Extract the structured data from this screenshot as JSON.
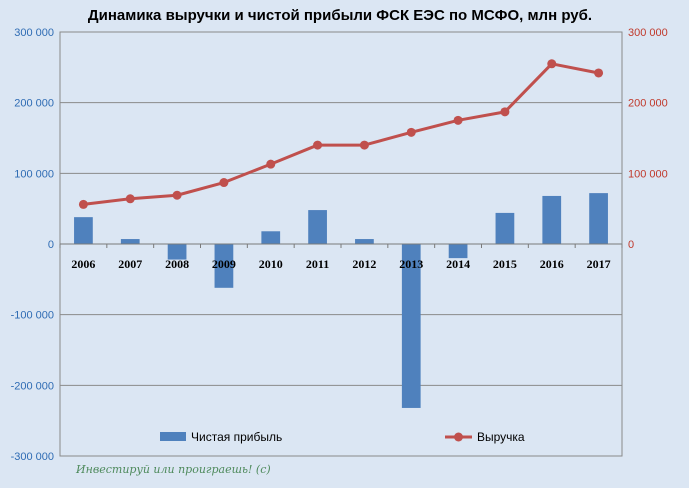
{
  "chart_data": {
    "type": "bar+line",
    "title": "Динамика выручки  и чистой прибыли ФСК ЕЭС по МСФО, млн руб.",
    "categories": [
      "2006",
      "2007",
      "2008",
      "2009",
      "2010",
      "2011",
      "2012",
      "2013",
      "2014",
      "2015",
      "2016",
      "2017"
    ],
    "series": [
      {
        "name": "Чистая прибыль",
        "type": "bar",
        "axis": "left",
        "color": "#4f81bd",
        "values": [
          38000,
          7000,
          -22000,
          -62000,
          18000,
          48000,
          7000,
          -232000,
          -20000,
          44000,
          68000,
          72000
        ]
      },
      {
        "name": "Выручка",
        "type": "line",
        "axis": "right",
        "color": "#c0504d",
        "values": [
          56000,
          64000,
          69000,
          87000,
          113000,
          140000,
          140000,
          158000,
          175000,
          187000,
          255000,
          242000
        ]
      }
    ],
    "y_left": {
      "ylim": [
        -300000,
        300000
      ],
      "ticks": [
        300000,
        200000,
        100000,
        0,
        -100000,
        -200000,
        -300000
      ],
      "tick_labels": [
        "300 000",
        "200 000",
        "100 000",
        "0",
        "-100 000",
        "-200 000",
        "-300 000"
      ]
    },
    "y_right": {
      "ylim": [
        -300000,
        300000
      ],
      "ticks": [
        300000,
        200000,
        100000,
        0
      ],
      "tick_labels": [
        "300 000",
        "200 000",
        "100 000",
        "0"
      ]
    },
    "grid": true,
    "legend": "bottom",
    "watermark": "Инвестируй или проиграешь! (с)"
  }
}
